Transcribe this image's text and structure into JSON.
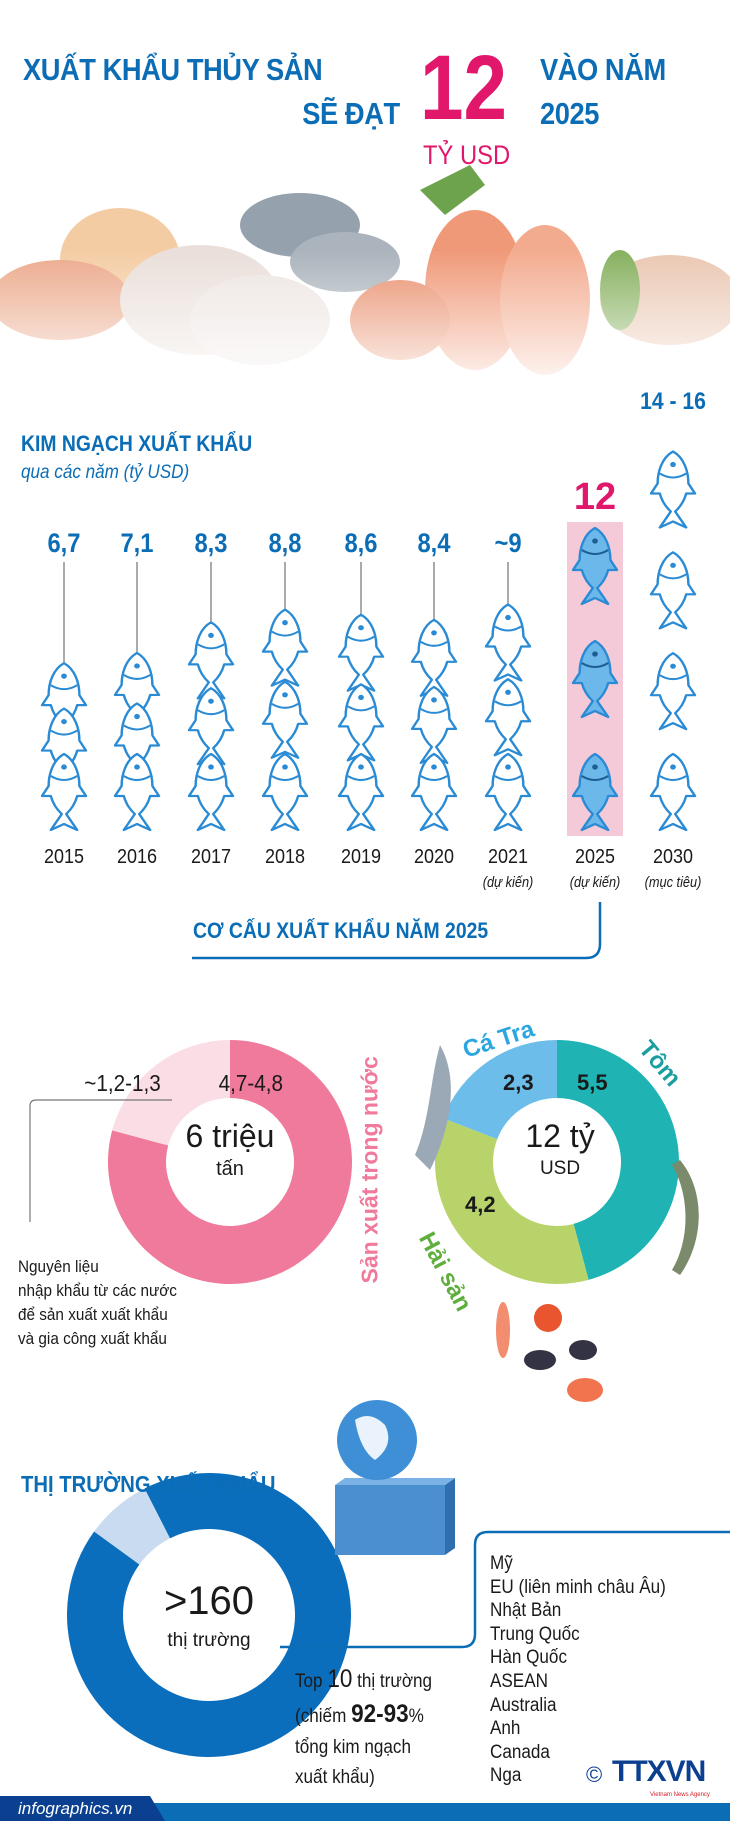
{
  "header": {
    "title_line1": "XUẤT KHẨU THỦY SẢN",
    "title_line2": "SẼ ĐẠT",
    "highlight_value": "12",
    "highlight_unit": "TỶ USD",
    "title_right1": "VÀO NĂM",
    "title_right2": "2025"
  },
  "export_value": {
    "heading": "KIM NGẠCH XUẤT KHẨU",
    "subheading": "qua các năm (tỷ USD)",
    "highlight_label": "12",
    "target_label": "14 - 16"
  },
  "structure": {
    "heading": "CƠ CẤU XUẤT KHẨU NĂM 2025",
    "volume_center_value": "6 triệu",
    "volume_center_unit": "tấn",
    "domestic_label": "Sản xuất trong nước",
    "imported_note": [
      "Nguyên liệu",
      "nhập khẩu từ các nước",
      "để sản xuất xuất khẩu",
      "và gia công xuất khẩu"
    ],
    "value_center_value": "12 tỷ",
    "value_center_unit": "USD"
  },
  "markets": {
    "heading": "THỊ TRƯỜNG XUẤT KHẨU",
    "center_value": ">160",
    "center_unit": "thị trường",
    "top_text_1a": "Top ",
    "top_text_1b": "10",
    "top_text_1c": " thị trường",
    "top_text_2a": "(chiếm ",
    "top_text_2b": "92-93",
    "top_text_2c": "%",
    "top_text_3": "tổng kim ngạch",
    "top_text_4": "xuất khẩu)",
    "top10": [
      "Mỹ",
      "EU (liên minh châu Âu)",
      "Nhật Bản",
      "Trung Quốc",
      "Hàn Quốc",
      "ASEAN",
      "Australia",
      "Anh",
      "Canada",
      "Nga"
    ]
  },
  "footer": {
    "site": "infographics.vn",
    "copyright": "©",
    "logo": "TTXVN",
    "logo_tagline": "Vietnam News Agency"
  },
  "colors": {
    "primary_blue": "#0b6db5",
    "accent_pink": "#e0176b",
    "fish_outline": "#2a8bd4",
    "fish_fill_2025": "#6cb8ea",
    "highlight_bg": "#f4c9d8"
  },
  "chart_data": [
    {
      "type": "pictogram-bar",
      "icon": "fish-icon",
      "categories": [
        "2015",
        "2016",
        "2017",
        "2018",
        "2019",
        "2020",
        "2021",
        "2025",
        "2030"
      ],
      "notes": [
        "",
        "",
        "",
        "",
        "",
        "",
        "(dự kiến)",
        "(dự kiến)",
        "(mục tiêu)"
      ],
      "labels": [
        "6,7",
        "7,1",
        "8,3",
        "8,8",
        "8,6",
        "8,4",
        "~9",
        "",
        ""
      ],
      "values": [
        6.7,
        7.1,
        8.3,
        8.8,
        8.6,
        8.4,
        9,
        12,
        15
      ],
      "icon_counts": [
        3,
        3,
        3,
        3,
        3,
        3,
        3,
        3,
        4
      ],
      "highlight": "2025",
      "unit": "tỷ USD"
    },
    {
      "type": "pie",
      "donut": true,
      "slices": [
        {
          "label": "4,7-4,8",
          "value": 4.75,
          "name": "Sản xuất trong nước",
          "color": "#f07a9b"
        },
        {
          "label": "~1,2-1,3",
          "value": 1.25,
          "name": "Nguyên liệu nhập khẩu",
          "color": "#fbdde6"
        }
      ]
    },
    {
      "type": "pie",
      "donut": true,
      "slices": [
        {
          "label": "5,5",
          "value": 5.5,
          "name": "Tôm",
          "color": "#1fb3b4"
        },
        {
          "label": "4,2",
          "value": 4.2,
          "name": "Hải sản",
          "color": "#b9d36b"
        },
        {
          "label": "2,3",
          "value": 2.3,
          "name": "Cá Tra",
          "color": "#6cbde9"
        }
      ]
    },
    {
      "type": "pie",
      "donut": true,
      "slices": [
        {
          "name": "Top 10 thị trường",
          "value": 92.5,
          "color": "#0a6ebd"
        },
        {
          "name": "other",
          "value": 7.5,
          "color": "#c8dbf0"
        }
      ]
    }
  ]
}
